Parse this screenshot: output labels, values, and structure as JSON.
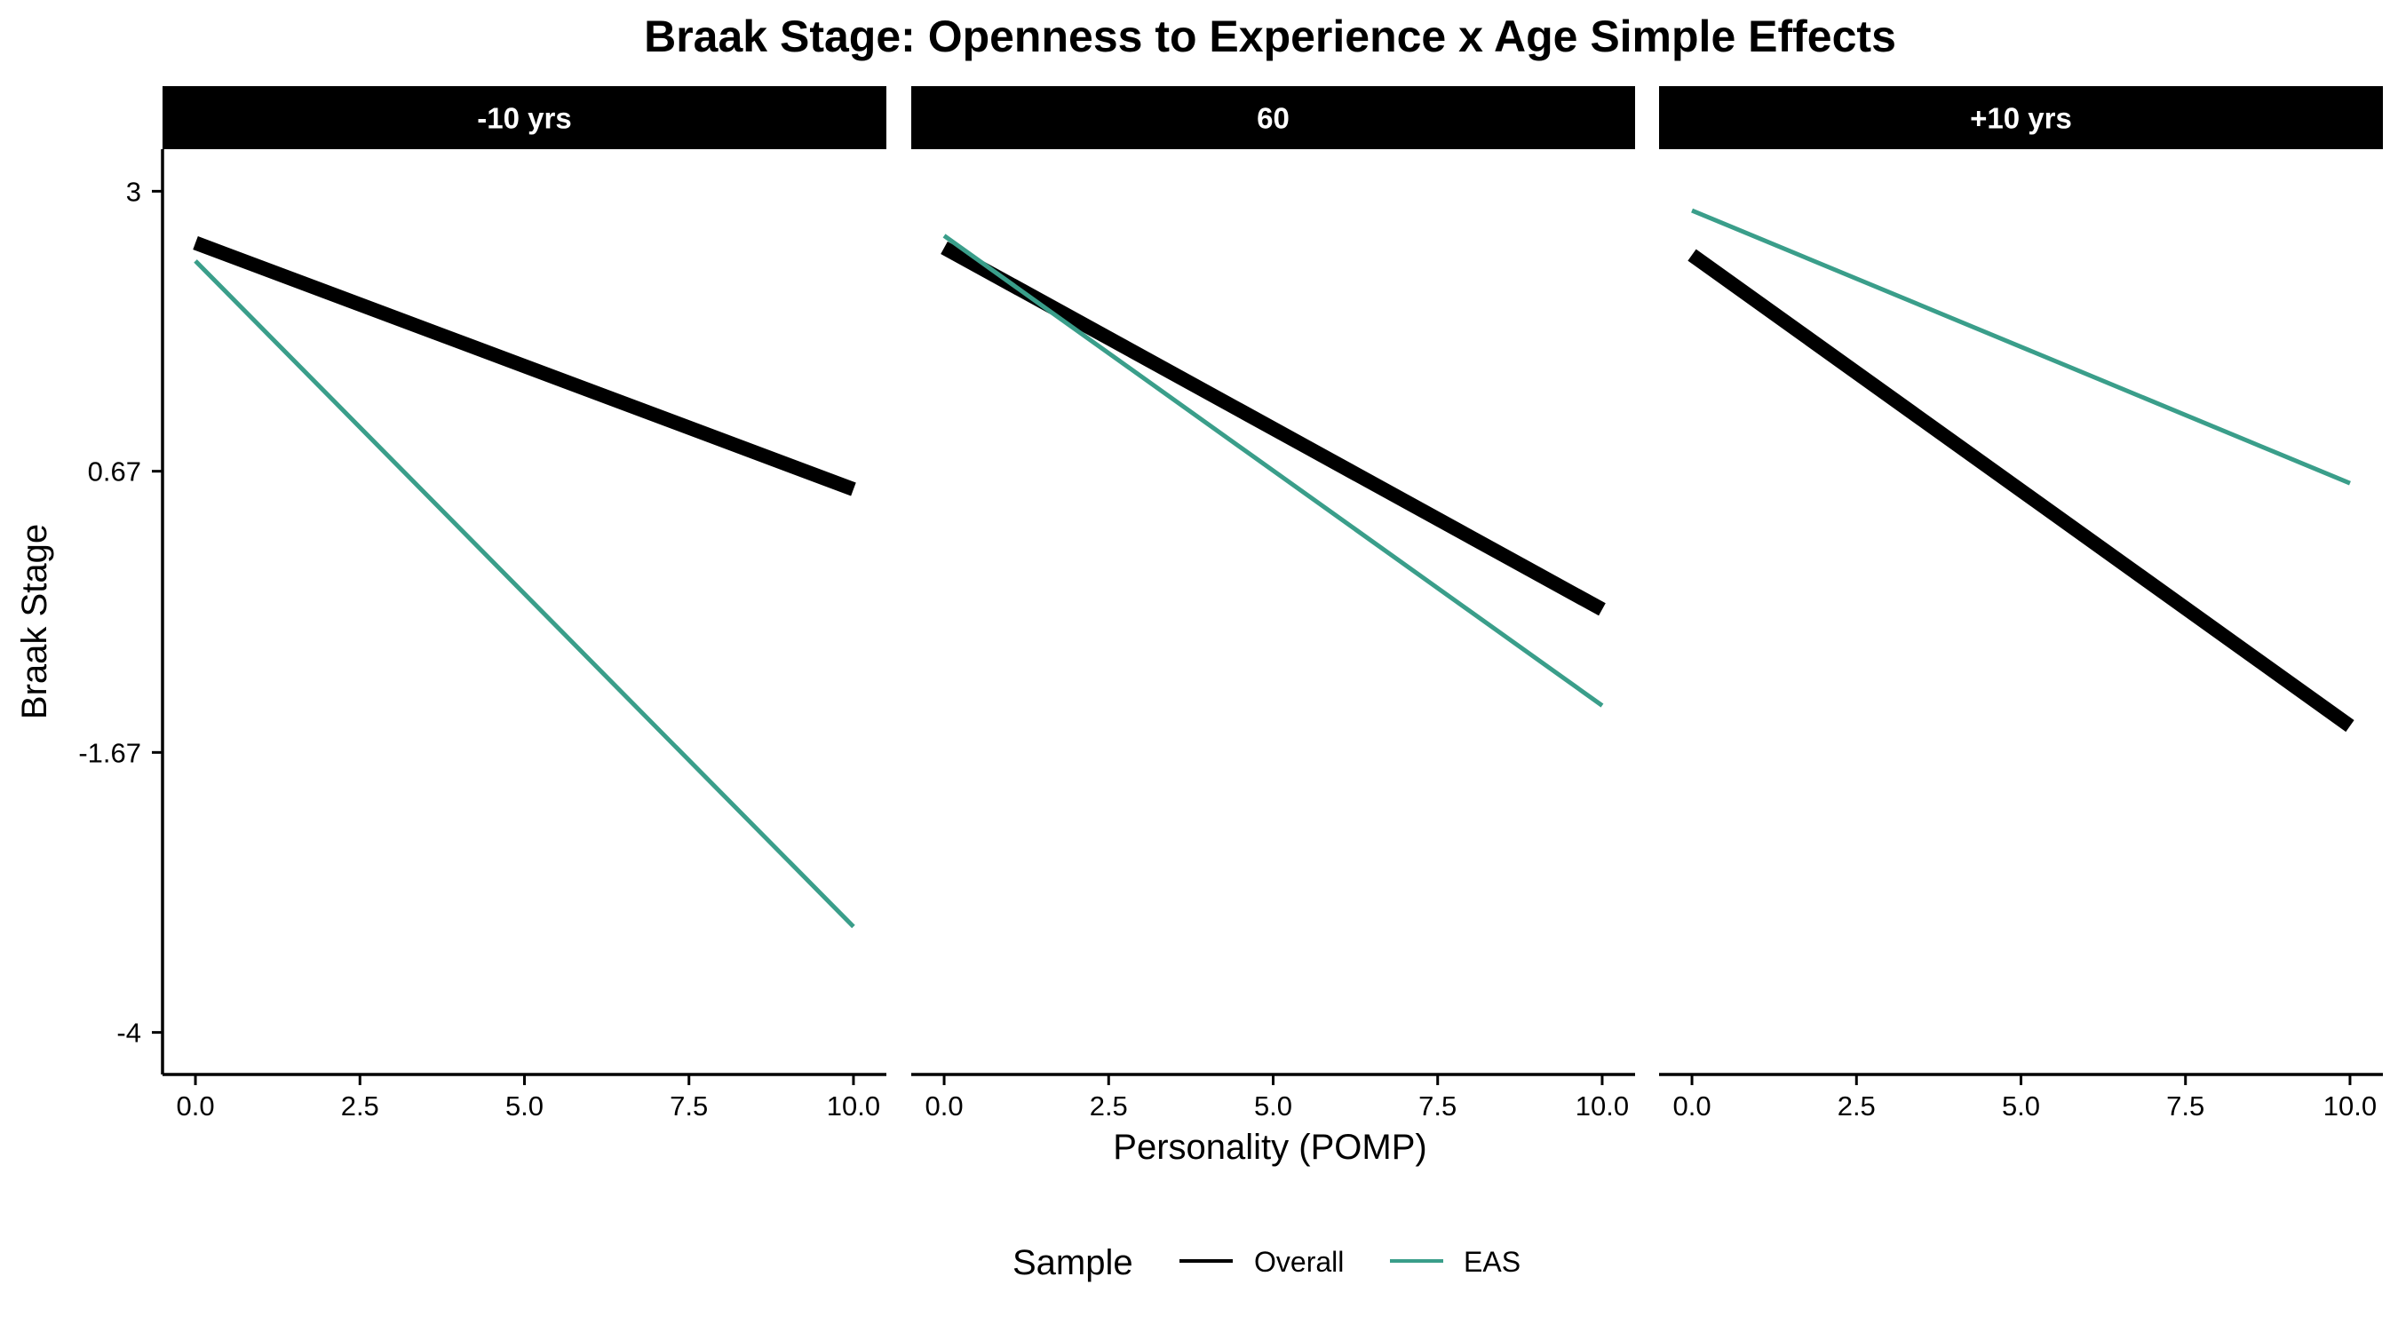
{
  "chart_data": {
    "type": "line",
    "title": "Braak Stage: Openness to Experience x Age Simple Effects",
    "xlabel": "Personality (POMP)",
    "ylabel": "Braak Stage",
    "xlim": [
      -0.5,
      10.5
    ],
    "ylim": [
      -4.35,
      3.35
    ],
    "x_ticks": [
      0,
      2.5,
      5,
      7.5,
      10
    ],
    "x_tick_labels": [
      "0.0",
      "2.5",
      "5.0",
      "7.5",
      "10.0"
    ],
    "y_ticks": [
      3,
      0.67,
      -1.67,
      -4
    ],
    "y_tick_labels": [
      "3",
      "0.67",
      "-1.67",
      "-4"
    ],
    "grid": false,
    "legend": {
      "title": "Sample",
      "position": "bottom",
      "entries": [
        {
          "label": "Overall",
          "color": "#000000"
        },
        {
          "label": "EAS",
          "color": "#3a9e8a"
        }
      ]
    },
    "panels": [
      {
        "label": "-10 yrs",
        "series": [
          {
            "name": "Overall",
            "color": "#000000",
            "x": [
              0,
              10
            ],
            "y": [
              2.57,
              0.52
            ]
          },
          {
            "name": "EAS",
            "color": "#3a9e8a",
            "x": [
              0,
              10
            ],
            "y": [
              2.42,
              -3.12
            ]
          }
        ]
      },
      {
        "label": "60",
        "series": [
          {
            "name": "Overall",
            "color": "#000000",
            "x": [
              0,
              10
            ],
            "y": [
              2.53,
              -0.48
            ]
          },
          {
            "name": "EAS",
            "color": "#3a9e8a",
            "x": [
              0,
              10
            ],
            "y": [
              2.63,
              -1.28
            ]
          }
        ]
      },
      {
        "label": "+10 yrs",
        "series": [
          {
            "name": "Overall",
            "color": "#000000",
            "x": [
              0,
              10
            ],
            "y": [
              2.47,
              -1.45
            ]
          },
          {
            "name": "EAS",
            "color": "#3a9e8a",
            "x": [
              0,
              10
            ],
            "y": [
              2.84,
              0.57
            ]
          }
        ]
      }
    ]
  }
}
